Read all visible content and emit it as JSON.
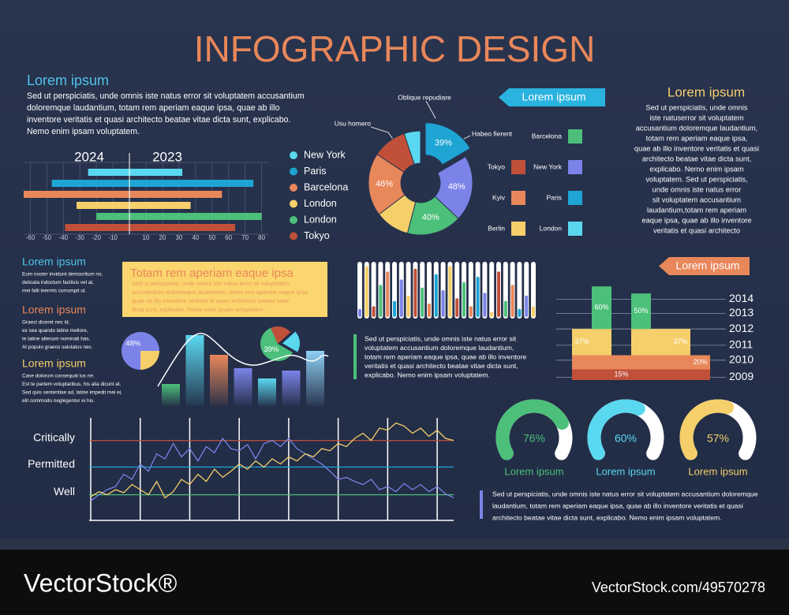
{
  "title": "INFOGRAPHIC DESIGN",
  "intro": {
    "heading": "Lorem ipsum",
    "lines": [
      "Sed ut perspiciatis, unde omnis iste natus error sit voluptatem accusantium",
      "doloremque laudantium, totam rem aperiam eaque ipsa, quae ab illo",
      "inventore veritatis et quasi architecto beatae vitae dicta sunt, explicabo.",
      "Nemo enim ipsam voluptatem."
    ]
  },
  "right_panel": {
    "tag": "Lorem ipsum",
    "heading": "Lorem ipsum",
    "lines": [
      "Sed ut perspiciatis, unde omnis",
      "iste natuserror sit voluptatem",
      "accusantium doloremque laudantium,",
      "totam rem aperiam eaque ipsa,",
      "quae ab illo inventore veritatis et quasi",
      "architecto beatae vitae dicta sunt,",
      "explicabo. Nemo enim ipsam",
      "voluptatem. Sed ut perspiciatis,",
      "unde omnis iste natus error",
      "sit voluptatem accusantium",
      "laudantium,totam rem aperiam",
      "eaque ipsa, quae ab illo inventore",
      "veritatis et quasi architecto"
    ]
  },
  "side_notes": [
    {
      "heading": "Lorem ipsum",
      "color": "#4fc3e8",
      "lines": [
        "Eum noster invidunt democritum no,",
        "delicata indoctum facilisis vel at,",
        "mei falli inermis corrumpit ut."
      ]
    },
    {
      "heading": "Lorem ipsum",
      "color": "#e8875a",
      "lines": [
        "Graeci diceret nec id,",
        "ex sea quando latine meliore,",
        "te latine alienum nominati has.",
        "At populo graeco salutatus nec."
      ]
    },
    {
      "heading": "Lorem ipsum",
      "color": "#f5cf6a",
      "lines": [
        "Case dolorum consequat ius ne.",
        "Est te partem voluptaribus, his alia dicunt at.",
        "Sed quis sententiae ad, latine impedit mei ei,",
        "elit commodo neglegentur ei his."
      ]
    }
  ],
  "highlight_box": {
    "heading": "Totam rem aperiam eaque ipsa",
    "lines": [
      "Sed ut perspiciatis, unde omnis iste natus error sit voluptatem",
      "accusantium doloremque laudantium, totam rem aperiam eaque ipsa,",
      "quae ab illo inventore veritatis et quasi architecto beatae vitae",
      "dicta sunt, explicabo. Nemo enim ipsam voluptatem."
    ]
  },
  "middle_text": {
    "lines": [
      "Sed ut perspiciatis, unde omnis iste natus error sit",
      "voluptatem accusantium doloremque laudantium,",
      "totam rem aperiam eaque ipsa, quae ab illo inventore",
      "veritatis et quasi architecto beatae vitae dicta sunt,",
      "explicabo. Nemo enim ipsam voluptatem."
    ]
  },
  "stack_tag": "Lorem ipsum",
  "bottom_text": {
    "lines": [
      "Sed ut perspiciatis, unde omnis iste natus error sit voluptatem accusantium doloremque",
      "laudantium, totam rem aperiam eaque ipsa, quae ab illo inventore veritatis et quasi",
      "architecto beatae vitae dicta sunt, explicabo. Nemo enim ipsam voluptatem."
    ]
  },
  "footer": {
    "brand": "VectorStock®",
    "url": "VectorStock.com/49570278"
  },
  "chart_data": [
    {
      "type": "bar",
      "orientation": "horizontal",
      "categories": [
        "2024",
        "2023"
      ],
      "xlim": [
        -64,
        84
      ],
      "xticks": [
        -60,
        -50,
        -40,
        -30,
        -20,
        -10,
        10,
        20,
        30,
        40,
        50,
        60,
        70,
        80
      ],
      "series": [
        {
          "name": "New York",
          "color": "#5ad8f0",
          "values": [
            -25,
            32
          ]
        },
        {
          "name": "Paris",
          "color": "#1ea5d4",
          "values": [
            -47,
            75
          ]
        },
        {
          "name": "Barcelona",
          "color": "#e8875a",
          "values": [
            -64,
            56
          ]
        },
        {
          "name": "London",
          "color": "#f5cf6a",
          "values": [
            -32,
            37
          ]
        },
        {
          "name": "London",
          "color": "#4cc07a",
          "values": [
            -20,
            80
          ]
        },
        {
          "name": "Tokyo",
          "color": "#c0503a",
          "values": [
            -39,
            64
          ]
        }
      ]
    },
    {
      "type": "pie",
      "donut": true,
      "explode": [
        0
      ],
      "values": [
        39,
        48,
        40,
        25,
        46,
        25,
        12
      ],
      "value_labels": [
        "39%",
        "48%",
        "40%",
        null,
        "46%",
        null,
        null
      ],
      "colors": [
        "#1ea5d4",
        "#7b83e8",
        "#4cc07a",
        "#f5cf6a",
        "#e8875a",
        "#c0503a",
        "#5ad8f0"
      ],
      "annotations": [
        "Oblique repudiare",
        "Usu homero",
        "Habeo fierent"
      ],
      "legend": [
        {
          "name": "Barcelona",
          "color": "#4cc07a"
        },
        {
          "name": "Tokyo",
          "color": "#c0503a"
        },
        {
          "name": "New York",
          "color": "#7b83e8"
        },
        {
          "name": "Kyiv",
          "color": "#e8875a"
        },
        {
          "name": "Paris",
          "color": "#1ea5d4"
        },
        {
          "name": "Berlin",
          "color": "#f5cf6a"
        },
        {
          "name": "London",
          "color": "#5ad8f0"
        }
      ]
    },
    {
      "type": "pie",
      "values": [
        48,
        16
      ],
      "value_labels": [
        "48%",
        null
      ],
      "colors": [
        "#7b83e8",
        "#f5cf6a"
      ]
    },
    {
      "type": "pie",
      "explode": [
        2
      ],
      "values": [
        39,
        13,
        13
      ],
      "value_labels": [
        "39%",
        null,
        null
      ],
      "colors": [
        "#4cc07a",
        "#c0503a",
        "#5ad8f0"
      ]
    },
    {
      "type": "bar",
      "orientation": "vertical",
      "ylim": [
        0,
        100
      ],
      "values": [
        28,
        90,
        65,
        48,
        35,
        45,
        70
      ],
      "colors": [
        "#4cc07a",
        "#5ad8f0",
        "#e8875a",
        "#7b83e8",
        "#5ad8f0",
        "#7b83e8",
        "#8fd0f5"
      ]
    },
    {
      "type": "progress",
      "ylim": [
        0,
        100
      ],
      "values": [
        15,
        95,
        20,
        60,
        85,
        30,
        70,
        40,
        90,
        55,
        25,
        80,
        50,
        95,
        35,
        65,
        20,
        75,
        45,
        10,
        85,
        30,
        60,
        15,
        40,
        20
      ],
      "colors": [
        "#7b83e8",
        "#f5cf6a",
        "#c0503a",
        "#4cc07a",
        "#e8875a",
        "#1ea5d4"
      ]
    },
    {
      "type": "stacked_bar",
      "ylim": [
        0,
        140
      ],
      "yticks": [
        {
          "value": 114,
          "label": "2014"
        },
        {
          "value": 94,
          "label": "2013"
        },
        {
          "value": 72,
          "label": "2012"
        },
        {
          "value": 49,
          "label": "2011"
        },
        {
          "value": 28,
          "label": "2010"
        },
        {
          "value": 4,
          "label": "2009"
        }
      ],
      "series": [
        {
          "color": "#c0503a",
          "values": [
            15,
            15,
            15,
            15,
            15,
            15,
            15
          ],
          "value_labels": [
            null,
            null,
            "15%",
            null,
            null,
            null,
            null
          ]
        },
        {
          "color": "#e8875a",
          "values": [
            20,
            20,
            20,
            20,
            20,
            20,
            20
          ],
          "value_labels": [
            null,
            null,
            null,
            null,
            null,
            null,
            "20%"
          ]
        },
        {
          "color": "#f5cf6a",
          "values": [
            37,
            37,
            null,
            37,
            37,
            37,
            null
          ],
          "value_labels": [
            "37%",
            null,
            null,
            null,
            null,
            "37%",
            null
          ]
        },
        {
          "color": "#4cc07a",
          "values": [
            null,
            60,
            null,
            50,
            null,
            null,
            null
          ],
          "value_labels": [
            null,
            "60%",
            null,
            "50%",
            null,
            null,
            null
          ]
        }
      ]
    },
    {
      "type": "line",
      "x": [
        0,
        1,
        2,
        3,
        4,
        5,
        6,
        7,
        8,
        9,
        10,
        11,
        12,
        13,
        14,
        15,
        16,
        17,
        18,
        19,
        20,
        21,
        22,
        23,
        24,
        25,
        26,
        27,
        28,
        29,
        30,
        31,
        32,
        33,
        34,
        35,
        36,
        37,
        38,
        39,
        40,
        41,
        42,
        43,
        44
      ],
      "xlim": [
        0,
        44
      ],
      "xticks": [
        0,
        6,
        12,
        18,
        24,
        30,
        36,
        42
      ],
      "ylim": [
        0,
        100
      ],
      "yticks": [
        {
          "value": 78,
          "label": "Critically"
        },
        {
          "value": 52,
          "label": "Permitted"
        },
        {
          "value": 25,
          "label": "Well"
        }
      ],
      "tick_colors": [
        "#c0503a",
        "#1ea5d4",
        "#4cc07a"
      ],
      "series": [
        {
          "color": "#7b83e8",
          "values": [
            19,
            25,
            30,
            33,
            45,
            40,
            55,
            48,
            65,
            60,
            75,
            62,
            70,
            58,
            72,
            66,
            80,
            70,
            68,
            74,
            60,
            75,
            78,
            72,
            80,
            70,
            65,
            60,
            55,
            48,
            40,
            42,
            38,
            35,
            40,
            30,
            33,
            28,
            36,
            30,
            35,
            28,
            33,
            26,
            22
          ]
        },
        {
          "color": "#f5cf6a",
          "values": [
            23,
            28,
            25,
            30,
            27,
            35,
            30,
            25,
            38,
            22,
            28,
            40,
            35,
            45,
            38,
            50,
            42,
            48,
            55,
            50,
            58,
            52,
            60,
            55,
            62,
            58,
            65,
            62,
            70,
            68,
            75,
            72,
            80,
            85,
            78,
            90,
            88,
            95,
            92,
            85,
            90,
            82,
            88,
            80,
            78
          ]
        }
      ]
    },
    {
      "type": "gauge",
      "ylim": [
        0,
        100
      ],
      "categories": [
        "Lorem ipsum",
        "Lorem ipsum",
        "Lorem ipsum"
      ],
      "values": [
        76,
        60,
        57
      ],
      "value_labels": [
        "76%",
        "60%",
        "57%"
      ],
      "colors": [
        "#4cc07a",
        "#5ad8f0",
        "#f5cf6a"
      ]
    }
  ]
}
